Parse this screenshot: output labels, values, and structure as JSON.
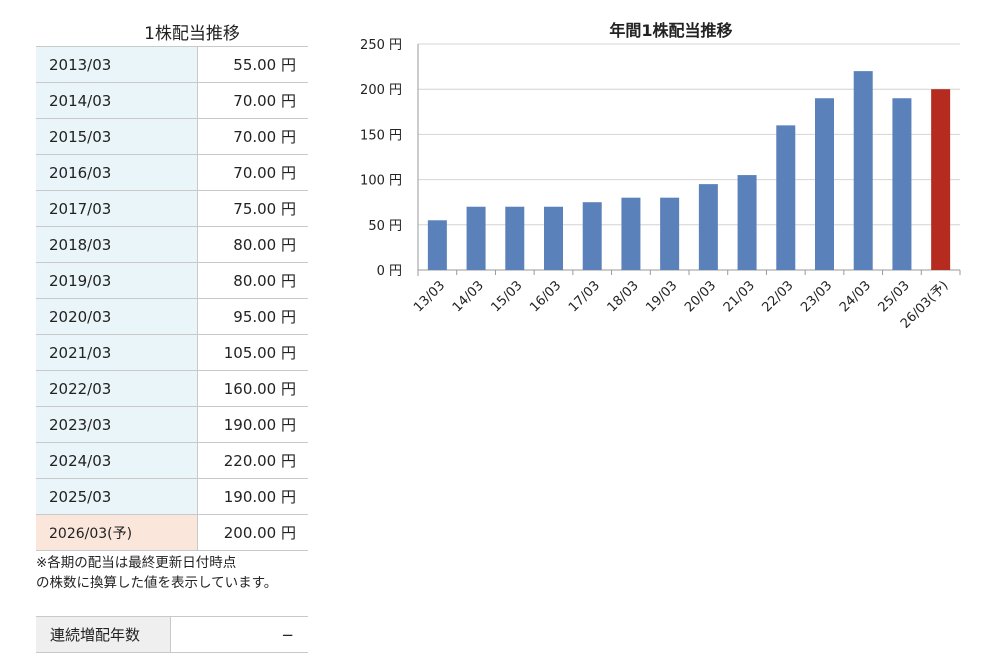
{
  "table": {
    "title": "1株配当推移",
    "rows": [
      {
        "period": "2013/03",
        "value": "55.00 円"
      },
      {
        "period": "2014/03",
        "value": "70.00 円"
      },
      {
        "period": "2015/03",
        "value": "70.00 円"
      },
      {
        "period": "2016/03",
        "value": "70.00 円"
      },
      {
        "period": "2017/03",
        "value": "75.00 円"
      },
      {
        "period": "2018/03",
        "value": "80.00 円"
      },
      {
        "period": "2019/03",
        "value": "80.00 円"
      },
      {
        "period": "2020/03",
        "value": "95.00 円"
      },
      {
        "period": "2021/03",
        "value": "105.00 円"
      },
      {
        "period": "2022/03",
        "value": "160.00 円"
      },
      {
        "period": "2023/03",
        "value": "190.00 円"
      },
      {
        "period": "2024/03",
        "value": "220.00 円"
      },
      {
        "period": "2025/03",
        "value": "190.00 円"
      },
      {
        "period": "2026/03(予)",
        "value": "200.00 円"
      }
    ],
    "note_line1": "※各期の配当は最終更新日付時点",
    "note_line2": "の株数に換算した値を表示しています。"
  },
  "streak": {
    "label": "連続増配年数",
    "value": "−"
  },
  "colors": {
    "bar": "#5b81bb",
    "forecast_bar": "#b52b1f",
    "year_cell_bg": "#eaf5fa",
    "forecast_cell_bg": "#fbe6dc"
  },
  "chart_data": {
    "type": "bar",
    "title": "年間1株配当推移",
    "categories": [
      "13/03",
      "14/03",
      "15/03",
      "16/03",
      "17/03",
      "18/03",
      "19/03",
      "20/03",
      "21/03",
      "22/03",
      "23/03",
      "24/03",
      "25/03",
      "26/03(予)"
    ],
    "values": [
      55,
      70,
      70,
      70,
      75,
      80,
      80,
      95,
      105,
      160,
      190,
      220,
      190,
      200
    ],
    "forecast_index": 13,
    "ylim": [
      0,
      250
    ],
    "yticks": [
      0,
      50,
      100,
      150,
      200,
      250
    ],
    "ytick_labels": [
      "0 円",
      "50 円",
      "100 円",
      "150 円",
      "200 円",
      "250 円"
    ],
    "grid": true
  }
}
